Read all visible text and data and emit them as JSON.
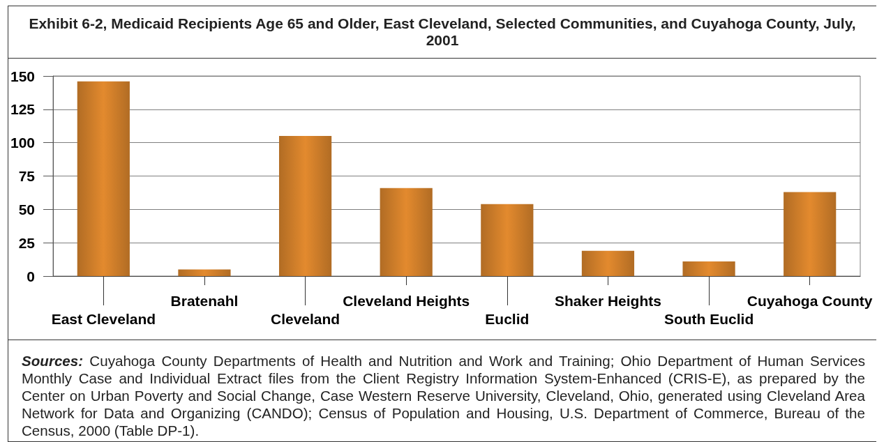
{
  "chart_data": {
    "type": "bar",
    "title": "Exhibit 6-2, Medicaid Recipients Age 65 and Older, East Cleveland, Selected Communities, and Cuyahoga County, July, 2001",
    "categories": [
      "East Cleveland",
      "Bratenahl",
      "Cleveland",
      "Cleveland Heights",
      "Euclid",
      "Shaker Heights",
      "South Euclid",
      "Cuyahoga County"
    ],
    "values": [
      146,
      5,
      105,
      66,
      54,
      19,
      11,
      63
    ],
    "color": "#e38a2e",
    "ylim": [
      0,
      150
    ],
    "yticks": [
      0,
      25,
      50,
      75,
      100,
      125,
      150
    ],
    "grid": "y",
    "annotations": [
      "Sources: Cuyahoga County Departments of Health and Nutrition and Work and Training; Ohio Department of Human Services Monthly Case and Individual Extract files from the Client Registry Information System-Enhanced (CRIS-E), as prepared by the Center on Urban Poverty and Social Change, Case Western Reserve University, Cleveland, Ohio, generated using Cleveland Area Network for Data and Organizing (CANDO); Census of Population and Housing, U.S. Department of Commerce, Bureau of the Census, 2000 (Table DP-1)."
    ]
  }
}
